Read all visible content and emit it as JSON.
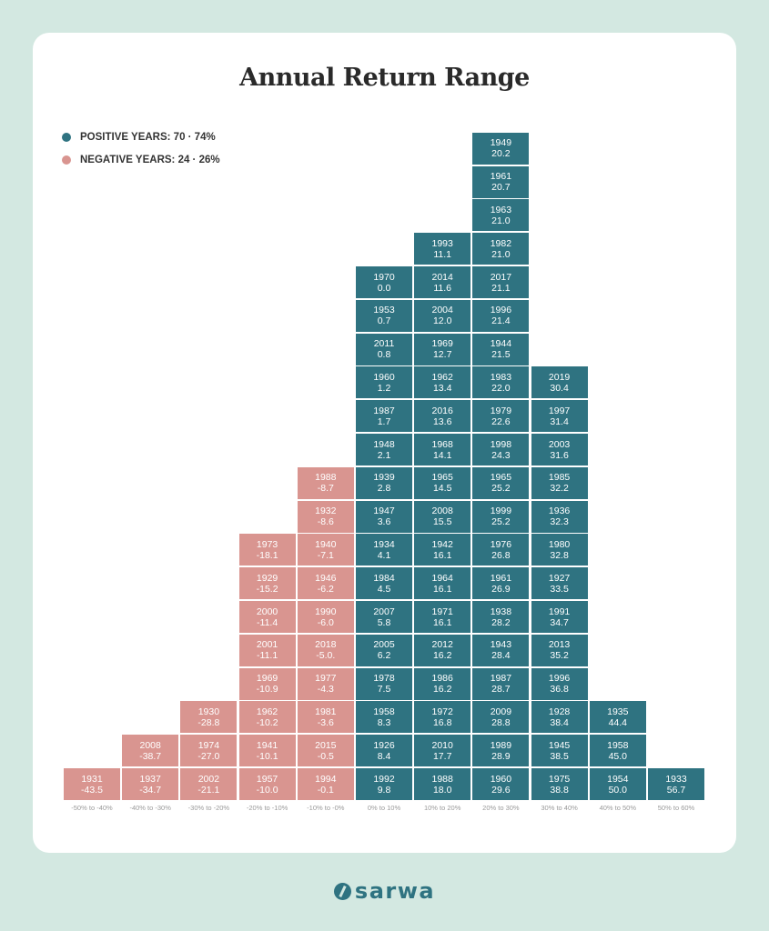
{
  "title": "Annual Return Range",
  "legend": {
    "positive": "POSITIVE YEARS:  70  ·  74%",
    "negative": "NEGATIVE YEARS:  24  ·  26%"
  },
  "colors": {
    "positive": "#2f7381",
    "negative": "#d99590"
  },
  "brand": "sarwa",
  "chart_data": {
    "type": "histogram",
    "title": "Annual Return Range",
    "bins": [
      {
        "label": "-50% to -40%",
        "sign": "negative",
        "years": [
          {
            "year": "1931",
            "value": "-43.5"
          }
        ]
      },
      {
        "label": "-40% to -30%",
        "sign": "negative",
        "years": [
          {
            "year": "1937",
            "value": "-34.7"
          },
          {
            "year": "2008",
            "value": "-38.7"
          }
        ]
      },
      {
        "label": "-30% to -20%",
        "sign": "negative",
        "years": [
          {
            "year": "2002",
            "value": "-21.1"
          },
          {
            "year": "1974",
            "value": "-27.0"
          },
          {
            "year": "1930",
            "value": "-28.8"
          }
        ]
      },
      {
        "label": "-20% to -10%",
        "sign": "negative",
        "years": [
          {
            "year": "1957",
            "value": "-10.0"
          },
          {
            "year": "1941",
            "value": "-10.1"
          },
          {
            "year": "1962",
            "value": "-10.2"
          },
          {
            "year": "1969",
            "value": "-10.9"
          },
          {
            "year": "2001",
            "value": "-11.1"
          },
          {
            "year": "2000",
            "value": "-11.4"
          },
          {
            "year": "1929",
            "value": "-15.2"
          },
          {
            "year": "1973",
            "value": "-18.1"
          }
        ]
      },
      {
        "label": "-10% to -0%",
        "sign": "negative",
        "years": [
          {
            "year": "1994",
            "value": "-0.1"
          },
          {
            "year": "2015",
            "value": "-0.5"
          },
          {
            "year": "1981",
            "value": "-3.6"
          },
          {
            "year": "1977",
            "value": "-4.3"
          },
          {
            "year": "2018",
            "value": "-5.0."
          },
          {
            "year": "1990",
            "value": "-6.0"
          },
          {
            "year": "1946",
            "value": "-6.2"
          },
          {
            "year": "1940",
            "value": "-7.1"
          },
          {
            "year": "1932",
            "value": "-8.6"
          },
          {
            "year": "1988",
            "value": "-8.7"
          }
        ]
      },
      {
        "label": "0% to 10%",
        "sign": "positive",
        "years": [
          {
            "year": "1992",
            "value": "9.8"
          },
          {
            "year": "1926",
            "value": "8.4"
          },
          {
            "year": "1958",
            "value": "8.3"
          },
          {
            "year": "1978",
            "value": "7.5"
          },
          {
            "year": "2005",
            "value": "6.2"
          },
          {
            "year": "2007",
            "value": "5.8"
          },
          {
            "year": "1984",
            "value": "4.5"
          },
          {
            "year": "1934",
            "value": "4.1"
          },
          {
            "year": "1947",
            "value": "3.6"
          },
          {
            "year": "1939",
            "value": "2.8"
          },
          {
            "year": "1948",
            "value": "2.1"
          },
          {
            "year": "1987",
            "value": "1.7"
          },
          {
            "year": "1960",
            "value": "1.2"
          },
          {
            "year": "2011",
            "value": "0.8"
          },
          {
            "year": "1953",
            "value": "0.7"
          },
          {
            "year": "1970",
            "value": "0.0"
          }
        ]
      },
      {
        "label": "10% to 20%",
        "sign": "positive",
        "years": [
          {
            "year": "1988",
            "value": "18.0"
          },
          {
            "year": "2010",
            "value": "17.7"
          },
          {
            "year": "1972",
            "value": "16.8"
          },
          {
            "year": "1986",
            "value": "16.2"
          },
          {
            "year": "2012",
            "value": "16.2"
          },
          {
            "year": "1971",
            "value": "16.1"
          },
          {
            "year": "1964",
            "value": "16.1"
          },
          {
            "year": "1942",
            "value": "16.1"
          },
          {
            "year": "2008",
            "value": "15.5"
          },
          {
            "year": "1965",
            "value": "14.5"
          },
          {
            "year": "1968",
            "value": "14.1"
          },
          {
            "year": "2016",
            "value": "13.6"
          },
          {
            "year": "1962",
            "value": "13.4"
          },
          {
            "year": "1969",
            "value": "12.7"
          },
          {
            "year": "2004",
            "value": "12.0"
          },
          {
            "year": "2014",
            "value": "11.6"
          },
          {
            "year": "1993",
            "value": "11.1"
          }
        ]
      },
      {
        "label": "20% to 30%",
        "sign": "positive",
        "years": [
          {
            "year": "1960",
            "value": "29.6"
          },
          {
            "year": "1989",
            "value": "28.9"
          },
          {
            "year": "2009",
            "value": "28.8"
          },
          {
            "year": "1987",
            "value": "28.7"
          },
          {
            "year": "1943",
            "value": "28.4"
          },
          {
            "year": "1938",
            "value": "28.2"
          },
          {
            "year": "1961",
            "value": "26.9"
          },
          {
            "year": "1976",
            "value": "26.8"
          },
          {
            "year": "1999",
            "value": "25.2"
          },
          {
            "year": "1965",
            "value": "25.2"
          },
          {
            "year": "1998",
            "value": "24.3"
          },
          {
            "year": "1979",
            "value": "22.6"
          },
          {
            "year": "1983",
            "value": "22.0"
          },
          {
            "year": "1944",
            "value": "21.5"
          },
          {
            "year": "1996",
            "value": "21.4"
          },
          {
            "year": "2017",
            "value": "21.1"
          },
          {
            "year": "1982",
            "value": "21.0"
          },
          {
            "year": "1963",
            "value": "21.0"
          },
          {
            "year": "1961",
            "value": "20.7"
          },
          {
            "year": "1949",
            "value": "20.2"
          }
        ]
      },
      {
        "label": "30% to 40%",
        "sign": "positive",
        "years": [
          {
            "year": "1975",
            "value": "38.8"
          },
          {
            "year": "1945",
            "value": "38.5"
          },
          {
            "year": "1928",
            "value": "38.4"
          },
          {
            "year": "1996",
            "value": "36.8"
          },
          {
            "year": "2013",
            "value": "35.2"
          },
          {
            "year": "1991",
            "value": "34.7"
          },
          {
            "year": "1927",
            "value": "33.5"
          },
          {
            "year": "1980",
            "value": "32.8"
          },
          {
            "year": "1936",
            "value": "32.3"
          },
          {
            "year": "1985",
            "value": "32.2"
          },
          {
            "year": "2003",
            "value": "31.6"
          },
          {
            "year": "1997",
            "value": "31.4"
          },
          {
            "year": "2019",
            "value": "30.4"
          }
        ]
      },
      {
        "label": "40% to 50%",
        "sign": "positive",
        "years": [
          {
            "year": "1954",
            "value": "50.0"
          },
          {
            "year": "1958",
            "value": "45.0"
          },
          {
            "year": "1935",
            "value": "44.4"
          }
        ]
      },
      {
        "label": "50% to 60%",
        "sign": "positive",
        "years": [
          {
            "year": "1933",
            "value": "56.7"
          }
        ]
      }
    ]
  }
}
